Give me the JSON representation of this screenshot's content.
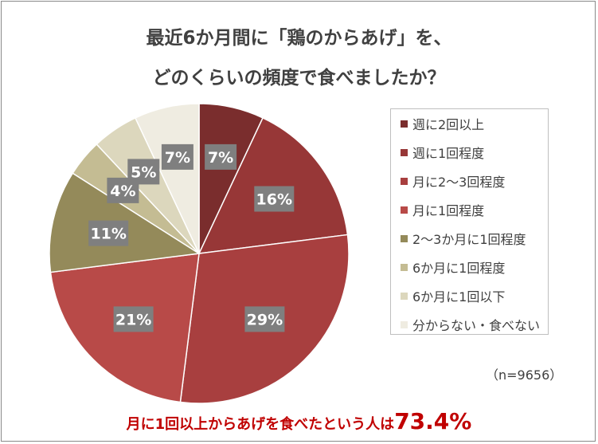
{
  "title": {
    "line1": "最近6か月間に「鶏のからあげ」を、",
    "line2": "どのくらいの頻度で食べましたか？"
  },
  "chart_data": {
    "type": "pie",
    "title": "最近6か月間に「鶏のからあげ」を、どのくらいの頻度で食べましたか？",
    "slices": [
      {
        "label": "週に2回以上",
        "value": 7,
        "display": "7%",
        "color": "#7a2d2d"
      },
      {
        "label": "週に1回程度",
        "value": 16,
        "display": "16%",
        "color": "#973737"
      },
      {
        "label": "月に2～3回程度",
        "value": 29,
        "display": "29%",
        "color": "#a83f3f"
      },
      {
        "label": "月に1回程度",
        "value": 21,
        "display": "21%",
        "color": "#b84a48"
      },
      {
        "label": "2～3か月に1回程度",
        "value": 11,
        "display": "11%",
        "color": "#948a5a"
      },
      {
        "label": "6か月に1回程度",
        "value": 4,
        "display": "4%",
        "color": "#c4bc93"
      },
      {
        "label": "6か月に1回以下",
        "value": 5,
        "display": "5%",
        "color": "#dcd7bd"
      },
      {
        "label": "分からない・食べない",
        "value": 7,
        "display": "7%",
        "color": "#efece1"
      }
    ],
    "legend_position": "right"
  },
  "sample_size": "（n=9656）",
  "footer": {
    "text": "月に1回以上からあげを食べたという人は",
    "value": "73.4%"
  }
}
